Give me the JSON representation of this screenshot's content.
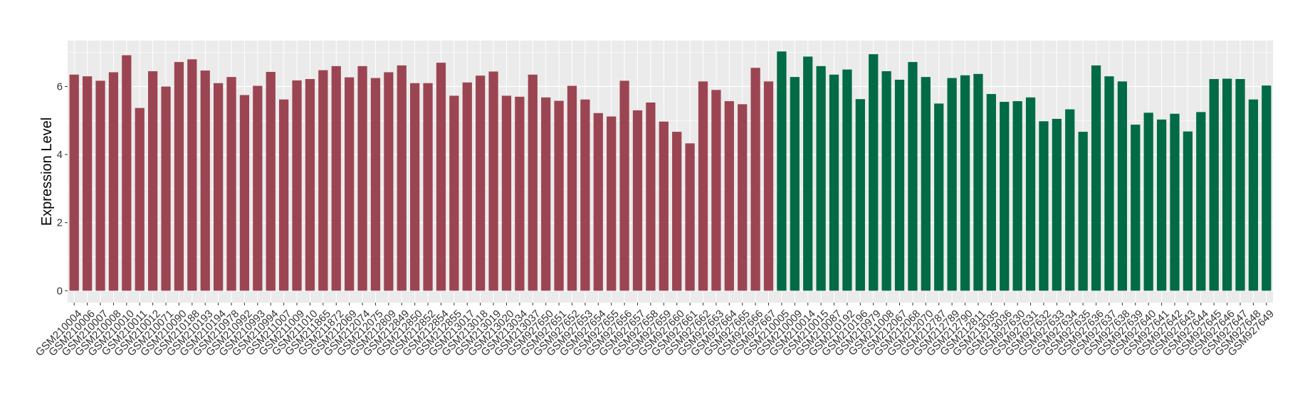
{
  "chart_data": {
    "type": "bar",
    "xlabel": "",
    "ylabel": "Expression Level",
    "ylim": [
      -0.35,
      7.35
    ],
    "yticks": [
      0,
      2,
      4,
      6
    ],
    "grid": true,
    "colors": {
      "group1": "#9C4552",
      "group2": "#006B45",
      "panel": "#EBEBEB",
      "grid": "#FFFFFF"
    },
    "categories": [
      "GSM210004",
      "GSM210006",
      "GSM210007",
      "GSM210008",
      "GSM210010",
      "GSM210011",
      "GSM210012",
      "GSM210071",
      "GSM210090",
      "GSM210188",
      "GSM210193",
      "GSM210194",
      "GSM210978",
      "GSM210992",
      "GSM210993",
      "GSM210994",
      "GSM211007",
      "GSM211009",
      "GSM211010",
      "GSM211865",
      "GSM211872",
      "GSM212069",
      "GSM212074",
      "GSM212075",
      "GSM212809",
      "GSM212849",
      "GSM212850",
      "GSM212852",
      "GSM212854",
      "GSM212855",
      "GSM213017",
      "GSM213018",
      "GSM213019",
      "GSM213020",
      "GSM213034",
      "GSM213037",
      "GSM927650",
      "GSM927651",
      "GSM927652",
      "GSM927653",
      "GSM927654",
      "GSM927655",
      "GSM927656",
      "GSM927657",
      "GSM927658",
      "GSM927659",
      "GSM927660",
      "GSM927661",
      "GSM927662",
      "GSM927663",
      "GSM927664",
      "GSM927665",
      "GSM927666",
      "GSM927667",
      "GSM210005",
      "GSM210009",
      "GSM210014",
      "GSM210015",
      "GSM210087",
      "GSM210192",
      "GSM210196",
      "GSM210979",
      "GSM211008",
      "GSM212067",
      "GSM212068",
      "GSM212070",
      "GSM212787",
      "GSM212789",
      "GSM212790",
      "GSM212811",
      "GSM213035",
      "GSM213036",
      "GSM927630",
      "GSM927631",
      "GSM927632",
      "GSM927633",
      "GSM927634",
      "GSM927635",
      "GSM927636",
      "GSM927637",
      "GSM927638",
      "GSM927639",
      "GSM927640",
      "GSM927641",
      "GSM927642",
      "GSM927643",
      "GSM927644",
      "GSM927645",
      "GSM927646",
      "GSM927647",
      "GSM927648",
      "GSM927649"
    ],
    "values": [
      6.35,
      6.3,
      6.17,
      6.42,
      6.92,
      5.37,
      6.45,
      6.0,
      6.72,
      6.8,
      6.47,
      6.1,
      6.28,
      5.75,
      6.02,
      6.43,
      5.62,
      6.18,
      6.22,
      6.48,
      6.6,
      6.27,
      6.6,
      6.25,
      6.42,
      6.62,
      6.1,
      6.1,
      6.7,
      5.73,
      6.12,
      6.32,
      6.44,
      5.73,
      5.7,
      6.35,
      5.68,
      5.58,
      6.02,
      5.62,
      5.22,
      5.12,
      6.17,
      5.3,
      5.53,
      4.97,
      4.67,
      4.33,
      6.15,
      5.9,
      5.57,
      5.48,
      6.55,
      6.15,
      7.03,
      6.28,
      6.88,
      6.6,
      6.35,
      6.5,
      5.63,
      6.95,
      6.45,
      6.2,
      6.72,
      6.28,
      5.5,
      6.25,
      6.33,
      6.37,
      5.78,
      5.55,
      5.57,
      5.68,
      4.98,
      5.05,
      5.33,
      4.67,
      6.62,
      6.3,
      6.15,
      4.88,
      5.23,
      5.03,
      5.2,
      4.68,
      5.25,
      6.22,
      6.23,
      6.22,
      5.62,
      6.03
    ],
    "group_split_index": 54
  }
}
